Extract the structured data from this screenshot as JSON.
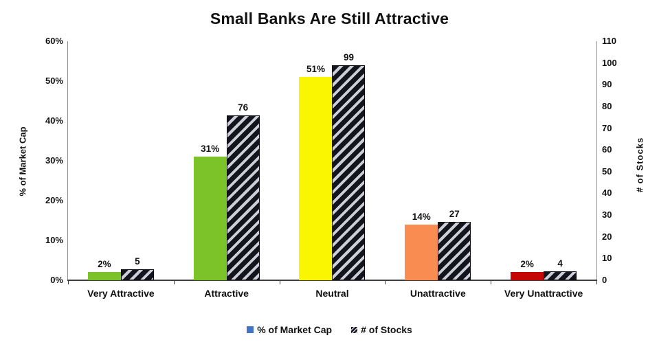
{
  "chart_data": {
    "type": "bar",
    "title": "Small Banks Are Still Attractive",
    "categories": [
      "Very Attractive",
      "Attractive",
      "Neutral",
      "Unattractive",
      "Very Unattractive"
    ],
    "series": [
      {
        "name": "% of Market Cap",
        "axis": "left",
        "values": [
          2,
          31,
          51,
          14,
          2
        ],
        "data_labels": [
          "2%",
          "31%",
          "51%",
          "14%",
          "2%"
        ],
        "bar_colors": [
          "#7CC32A",
          "#7CC32A",
          "#FAF500",
          "#F98C50",
          "#C40606"
        ],
        "style": "solid"
      },
      {
        "name": "# of Stocks",
        "axis": "right",
        "values": [
          5,
          76,
          99,
          27,
          4
        ],
        "data_labels": [
          "5",
          "76",
          "99",
          "27",
          "4"
        ],
        "style": "hatched",
        "hatch_stripe_color": "#14141c",
        "hatch_background_color": "#ccced9"
      }
    ],
    "left_axis": {
      "label": "% of Market Cap",
      "min": 0,
      "max": 60,
      "ticks": [
        "0%",
        "10%",
        "20%",
        "30%",
        "40%",
        "50%",
        "60%"
      ]
    },
    "right_axis": {
      "label": "# of Stocks",
      "min": 0,
      "max": 110,
      "ticks": [
        "0",
        "10",
        "20",
        "30",
        "40",
        "50",
        "60",
        "70",
        "80",
        "90",
        "100",
        "110"
      ]
    },
    "legend": {
      "position": "bottom",
      "entries": [
        {
          "label": "% of Market Cap",
          "swatch": "blue-square",
          "swatch_color": "#4472C4"
        },
        {
          "label": "# of Stocks",
          "swatch": "hatched-square",
          "swatch_color": "#14141c"
        }
      ]
    },
    "grid": false,
    "background": "#ffffff"
  }
}
